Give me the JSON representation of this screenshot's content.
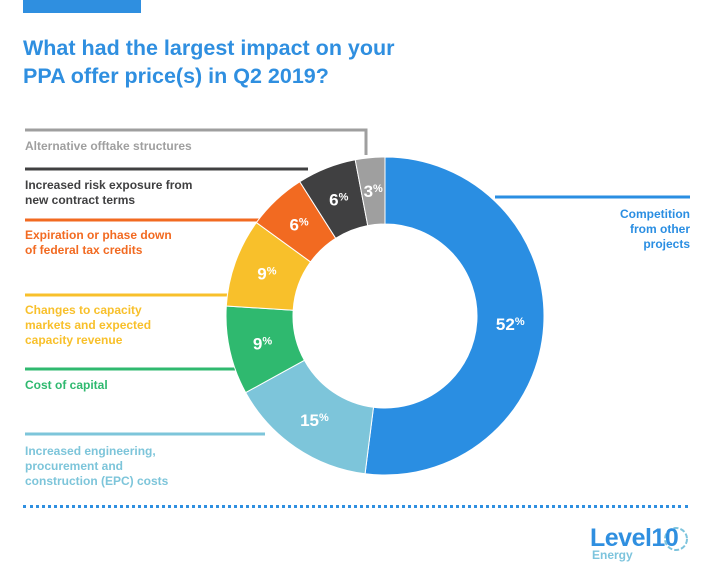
{
  "title_lines": [
    "What had the largest impact on your",
    "PPA offer price(s) in Q2 2019?"
  ],
  "colors": {
    "accent": "#2f8fe0",
    "accent_bar": "#2f8fe0"
  },
  "chart_data": {
    "type": "donut",
    "title": "What had the largest impact on your PPA offer price(s) in Q2 2019?",
    "slices": [
      {
        "value": 52,
        "display": "52",
        "label_lines": [
          "Competition",
          "from other",
          "projects"
        ],
        "color": "#2a8ee2"
      },
      {
        "value": 15,
        "display": "15",
        "label_lines": [
          "Increased engineering,",
          "procurement and",
          "construction (EPC) costs"
        ],
        "color": "#7dc5da"
      },
      {
        "value": 9,
        "display": "9",
        "label_lines": [
          "Cost of capital"
        ],
        "color": "#2fb96f"
      },
      {
        "value": 9,
        "display": "9",
        "label_lines": [
          "Changes to capacity",
          "markets and expected",
          "capacity revenue"
        ],
        "color": "#f8c02b"
      },
      {
        "value": 6,
        "display": "6",
        "label_lines": [
          "Expiration or phase down",
          "of federal tax credits"
        ],
        "color": "#f26a21"
      },
      {
        "value": 6,
        "display": "6",
        "label_lines": [
          "Increased risk exposure from",
          "new contract terms"
        ],
        "color": "#404041"
      },
      {
        "value": 3,
        "display": "3",
        "label_lines": [
          "Alternative offtake structures"
        ],
        "color": "#9f9f9f"
      }
    ],
    "value_suffix": "%"
  },
  "logo": {
    "name": "Level10",
    "sub": "Energy"
  }
}
